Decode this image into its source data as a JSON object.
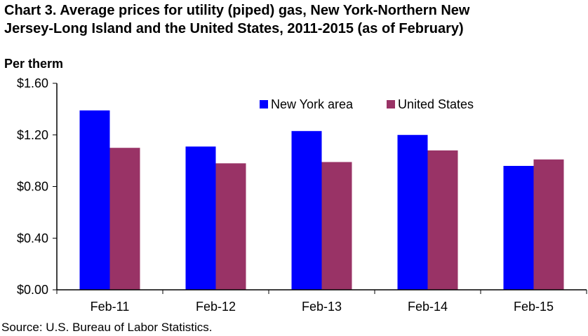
{
  "chart_data": {
    "type": "bar",
    "title": [
      "Chart 3. Average prices for utility (piped) gas, New York-Northern New",
      "Jersey-Long Island and the United States, 2011-2015 (as of February)"
    ],
    "ylabel": "Per therm",
    "xlabel": "",
    "categories": [
      "Feb-11",
      "Feb-12",
      "Feb-13",
      "Feb-14",
      "Feb-15"
    ],
    "series": [
      {
        "name": "New York area",
        "values": [
          1.39,
          1.11,
          1.23,
          1.2,
          0.96
        ],
        "color": "#0000ff"
      },
      {
        "name": "United States",
        "values": [
          1.1,
          0.98,
          0.99,
          1.08,
          1.01
        ],
        "color": "#993366"
      }
    ],
    "ylim": [
      0,
      1.6
    ],
    "yticks": [
      0,
      0.4,
      0.8,
      1.2,
      1.6
    ],
    "ytick_labels": [
      "$0.00",
      "$0.40",
      "$0.80",
      "$1.20",
      "$1.60"
    ],
    "grid": false,
    "legend_position": "top-right"
  },
  "source": "Source: U.S. Bureau of Labor Statistics."
}
